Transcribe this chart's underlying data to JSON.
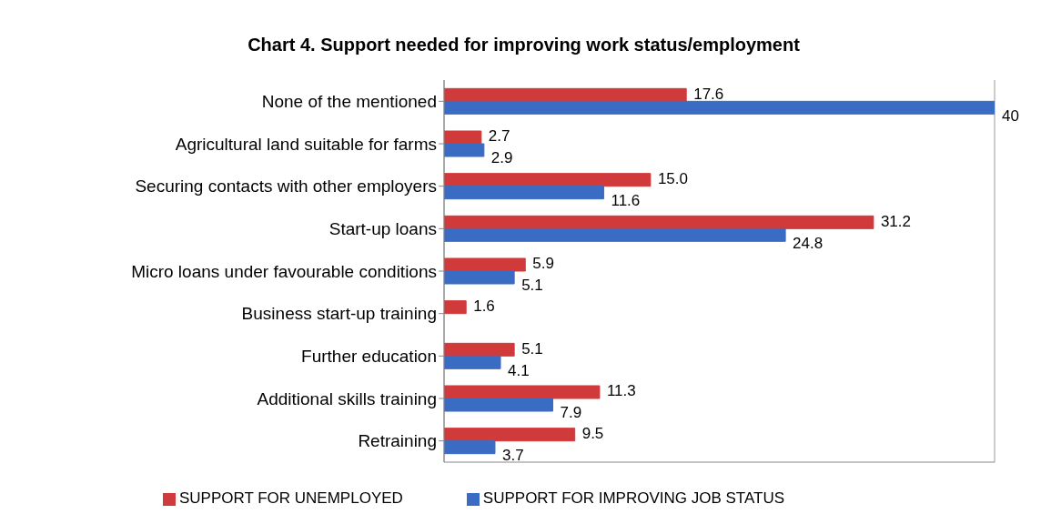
{
  "chart_data": {
    "type": "bar",
    "orientation": "horizontal",
    "title": "Chart 4. Support needed for improving work status/employment",
    "categories": [
      "None of the mentioned",
      "Agricultural land suitable for farms",
      "Securing contacts  with other employers",
      "Start-up loans",
      "Micro loans under favourable conditions",
      "Business start-up training",
      "Further education",
      "Additional skills training",
      "Retraining"
    ],
    "series": [
      {
        "name": "SUPPORT FOR UNEMPLOYED",
        "color": "#d03a3a",
        "values": [
          17.6,
          2.7,
          15.0,
          31.2,
          5.9,
          1.6,
          5.1,
          11.3,
          9.5
        ],
        "value_labels": [
          "17.6",
          "2.7",
          "15.0",
          "31.2",
          "5.9",
          "1.6",
          "5.1",
          "11.3",
          "9.5"
        ]
      },
      {
        "name": "SUPPORT FOR IMPROVING JOB STATUS",
        "color": "#3a6cc4",
        "values": [
          40,
          2.9,
          11.6,
          24.8,
          5.1,
          null,
          4.1,
          7.9,
          3.7
        ],
        "value_labels": [
          "40",
          "2.9",
          "11.6",
          "24.8",
          "5.1",
          null,
          "4.1",
          "7.9",
          "3.7"
        ]
      }
    ],
    "xlim": [
      0,
      40
    ],
    "tick_labels": "y",
    "grid": "x",
    "legend": "bottom"
  }
}
